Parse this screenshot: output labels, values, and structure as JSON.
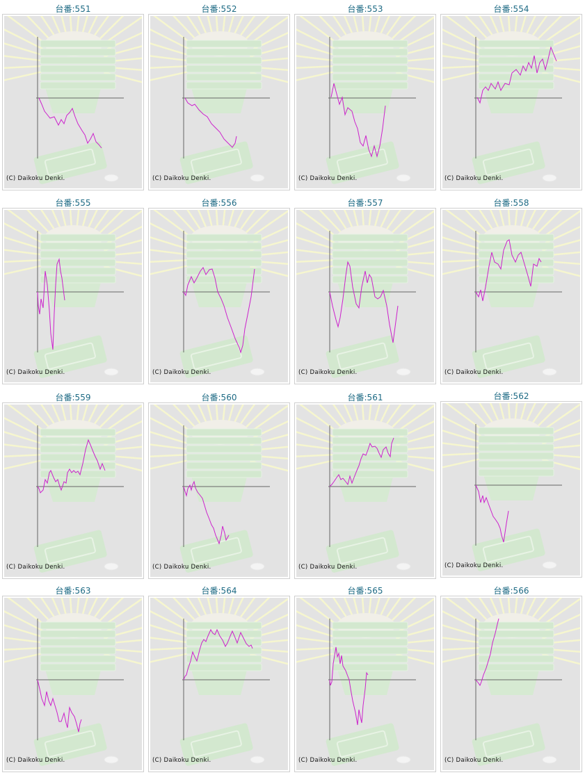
{
  "copyright": "(C) Daikoku Denki.",
  "line_color": "#cc22cc",
  "chart_data": [
    {
      "type": "line",
      "title": "台番:551",
      "xlim": [
        0,
        124
      ],
      "ylim": [
        -87,
        88
      ],
      "x": [
        2,
        6,
        10,
        14,
        18,
        24,
        30,
        34,
        38,
        42,
        46,
        50,
        54,
        58,
        64,
        68,
        72,
        76,
        80,
        84,
        88,
        92
      ],
      "y": [
        0,
        -9,
        -19,
        -24,
        -29,
        -27,
        -39,
        -31,
        -37,
        -25,
        -21,
        -15,
        -27,
        -37,
        -47,
        -53,
        -65,
        -59,
        -51,
        -63,
        -67,
        -72
      ]
    },
    {
      "type": "line",
      "title": "台番:552",
      "xlim": [
        0,
        124
      ],
      "ylim": [
        -87,
        88
      ],
      "x": [
        2,
        6,
        12,
        16,
        22,
        28,
        34,
        40,
        46,
        52,
        58,
        64,
        70,
        74,
        76
      ],
      "y": [
        0,
        -7,
        -11,
        -9,
        -17,
        -23,
        -27,
        -37,
        -43,
        -49,
        -59,
        -65,
        -71,
        -65,
        -55
      ]
    },
    {
      "type": "line",
      "title": "台番:553",
      "xlim": [
        0,
        124
      ],
      "ylim": [
        -87,
        88
      ],
      "x": [
        2,
        6,
        10,
        14,
        18,
        22,
        26,
        32,
        36,
        40,
        44,
        48,
        52,
        56,
        60,
        64,
        68,
        72,
        76,
        80
      ],
      "y": [
        1,
        21,
        6,
        -9,
        1,
        -24,
        -14,
        -19,
        -34,
        -44,
        -64,
        -69,
        -54,
        -74,
        -84,
        -69,
        -84,
        -69,
        -44,
        -11
      ]
    },
    {
      "type": "line",
      "title": "台番:554",
      "xlim": [
        0,
        124
      ],
      "ylim": [
        -87,
        88
      ],
      "x": [
        2,
        6,
        10,
        14,
        18,
        22,
        28,
        32,
        36,
        42,
        48,
        52,
        58,
        64,
        68,
        72,
        76,
        80,
        84,
        88,
        92,
        96,
        100,
        104,
        108,
        112,
        116
      ],
      "y": [
        1,
        -7,
        11,
        16,
        11,
        21,
        13,
        23,
        11,
        21,
        19,
        36,
        41,
        33,
        46,
        39,
        51,
        43,
        61,
        36,
        51,
        56,
        41,
        56,
        73,
        63,
        53
      ]
    },
    {
      "type": "line",
      "title": "台番:555",
      "xlim": [
        0,
        124
      ],
      "ylim": [
        -87,
        88
      ],
      "x": [
        0,
        1,
        3,
        5,
        8,
        11,
        14,
        17,
        19,
        22,
        24,
        26,
        28,
        31,
        33,
        35,
        39
      ],
      "y": [
        0,
        -20,
        -32,
        -10,
        -23,
        30,
        10,
        -27,
        -60,
        -83,
        -30,
        10,
        40,
        47,
        30,
        20,
        -12
      ]
    },
    {
      "type": "line",
      "title": "台番:556",
      "xlim": [
        0,
        124
      ],
      "ylim": [
        -87,
        88
      ],
      "x": [
        0,
        3,
        6,
        11,
        15,
        19,
        24,
        28,
        32,
        37,
        41,
        45,
        49,
        54,
        58,
        63,
        69,
        74,
        80,
        82,
        85,
        88,
        92,
        97,
        102
      ],
      "y": [
        0,
        -5,
        10,
        22,
        13,
        20,
        30,
        35,
        25,
        32,
        33,
        20,
        0,
        -10,
        -20,
        -37,
        -53,
        -67,
        -80,
        -87,
        -77,
        -53,
        -33,
        -7,
        33
      ]
    },
    {
      "type": "line",
      "title": "台番:557",
      "xlim": [
        0,
        124
      ],
      "ylim": [
        -87,
        88
      ],
      "x": [
        0,
        4,
        9,
        12,
        15,
        19,
        23,
        26,
        29,
        33,
        38,
        42,
        46,
        51,
        54,
        57,
        60,
        65,
        69,
        73,
        77,
        82,
        86,
        91,
        98
      ],
      "y": [
        0,
        -20,
        -40,
        -50,
        -37,
        -10,
        23,
        43,
        37,
        7,
        -17,
        -23,
        7,
        30,
        13,
        25,
        20,
        -7,
        -10,
        -7,
        2,
        -20,
        -47,
        -73,
        -20
      ]
    },
    {
      "type": "line",
      "title": "台番:558",
      "xlim": [
        0,
        124
      ],
      "ylim": [
        -87,
        88
      ],
      "x": [
        0,
        4,
        7,
        10,
        14,
        19,
        23,
        27,
        32,
        36,
        40,
        45,
        48,
        52,
        57,
        61,
        65,
        70,
        75,
        79,
        83,
        88,
        91,
        94
      ],
      "y": [
        0,
        -7,
        3,
        -13,
        7,
        37,
        57,
        43,
        40,
        33,
        60,
        73,
        75,
        53,
        43,
        53,
        57,
        40,
        23,
        8,
        40,
        37,
        48,
        43
      ]
    },
    {
      "type": "line",
      "title": "台番:559",
      "xlim": [
        0,
        124
      ],
      "ylim": [
        -87,
        88
      ],
      "x": [
        0,
        2,
        4,
        8,
        11,
        14,
        17,
        19,
        23,
        26,
        29,
        32,
        34,
        38,
        41,
        43,
        46,
        49,
        52,
        55,
        58,
        61,
        65,
        69,
        73,
        76,
        80,
        83,
        86,
        90,
        93,
        97
      ],
      "y": [
        0,
        -3,
        -9,
        -5,
        10,
        5,
        20,
        23,
        13,
        7,
        10,
        0,
        -5,
        7,
        5,
        20,
        25,
        20,
        23,
        20,
        22,
        17,
        33,
        53,
        67,
        60,
        50,
        43,
        37,
        25,
        33,
        23
      ]
    },
    {
      "type": "line",
      "title": "台番:560",
      "xlim": [
        0,
        124
      ],
      "ylim": [
        -87,
        88
      ],
      "x": [
        0,
        2,
        4,
        6,
        9,
        11,
        13,
        15,
        17,
        20,
        24,
        27,
        30,
        33,
        37,
        40,
        43,
        46,
        51,
        54,
        56,
        59,
        61,
        65
      ],
      "y": [
        0,
        -7,
        -13,
        -3,
        2,
        -5,
        3,
        7,
        -2,
        -8,
        -13,
        -17,
        -27,
        -37,
        -47,
        -55,
        -60,
        -70,
        -82,
        -70,
        -57,
        -67,
        -77,
        -70
      ]
    },
    {
      "type": "line",
      "title": "台番:561",
      "xlim": [
        0,
        124
      ],
      "ylim": [
        -87,
        88
      ],
      "x": [
        0,
        3,
        6,
        10,
        13,
        16,
        19,
        23,
        26,
        29,
        32,
        35,
        39,
        42,
        45,
        48,
        52,
        55,
        58,
        61,
        65,
        68,
        71,
        74,
        77,
        81,
        84,
        87,
        89,
        92
      ],
      "y": [
        0,
        3,
        7,
        13,
        17,
        10,
        12,
        7,
        3,
        15,
        5,
        13,
        23,
        30,
        40,
        47,
        45,
        53,
        62,
        57,
        58,
        55,
        48,
        42,
        53,
        57,
        48,
        43,
        62,
        70
      ]
    },
    {
      "type": "line",
      "title": "台番:562",
      "xlim": [
        0,
        124
      ],
      "ylim": [
        -87,
        88
      ],
      "x": [
        0,
        4,
        7,
        10,
        12,
        15,
        19,
        22,
        25,
        28,
        32,
        35,
        37,
        40,
        44,
        47
      ],
      "y": [
        0,
        -9,
        -25,
        -15,
        -25,
        -18,
        -29,
        -37,
        -45,
        -49,
        -55,
        -62,
        -72,
        -82,
        -55,
        -37
      ]
    },
    {
      "type": "line",
      "title": "台番:563",
      "xlim": [
        0,
        124
      ],
      "ylim": [
        -87,
        88
      ],
      "x": [
        0,
        3,
        6,
        10,
        13,
        16,
        19,
        22,
        25,
        28,
        31,
        34,
        38,
        41,
        43,
        46,
        49,
        53,
        56,
        59,
        61,
        63
      ],
      "y": [
        0,
        -13,
        -27,
        -37,
        -17,
        -30,
        -37,
        -27,
        -37,
        -47,
        -60,
        -60,
        -48,
        -62,
        -69,
        -40,
        -47,
        -53,
        -63,
        -75,
        -63,
        -57
      ]
    },
    {
      "type": "line",
      "title": "台番:564",
      "xlim": [
        0,
        124
      ],
      "ylim": [
        -87,
        88
      ],
      "x": [
        0,
        2,
        4,
        6,
        10,
        13,
        16,
        19,
        23,
        26,
        29,
        32,
        35,
        39,
        42,
        45,
        48,
        52,
        56,
        60,
        63,
        67,
        70,
        73,
        77,
        82,
        86,
        90,
        94,
        97,
        99
      ],
      "y": [
        0,
        5,
        7,
        15,
        27,
        40,
        33,
        27,
        43,
        53,
        58,
        55,
        63,
        72,
        67,
        65,
        72,
        63,
        57,
        48,
        53,
        63,
        70,
        63,
        53,
        68,
        60,
        52,
        48,
        50,
        45
      ]
    },
    {
      "type": "line",
      "title": "台番:565",
      "xlim": [
        0,
        124
      ],
      "ylim": [
        -87,
        88
      ],
      "x": [
        0,
        1,
        3,
        5,
        9,
        11,
        13,
        15,
        17,
        19,
        23,
        26,
        28,
        30,
        33,
        37,
        40,
        42,
        44,
        46,
        48,
        51,
        53,
        55
      ],
      "y": [
        0,
        -8,
        -3,
        23,
        47,
        33,
        38,
        23,
        35,
        20,
        13,
        5,
        0,
        -13,
        -30,
        -47,
        -65,
        -43,
        -53,
        -62,
        -37,
        -13,
        10,
        7
      ]
    },
    {
      "type": "line",
      "title": "台番:566",
      "xlim": [
        0,
        124
      ],
      "ylim": [
        -87,
        88
      ],
      "x": [
        0,
        4,
        6,
        8,
        11,
        15,
        18,
        21,
        24,
        28,
        31,
        33
      ],
      "y": [
        0,
        -5,
        -8,
        -3,
        7,
        17,
        27,
        37,
        53,
        67,
        80,
        88
      ]
    }
  ]
}
